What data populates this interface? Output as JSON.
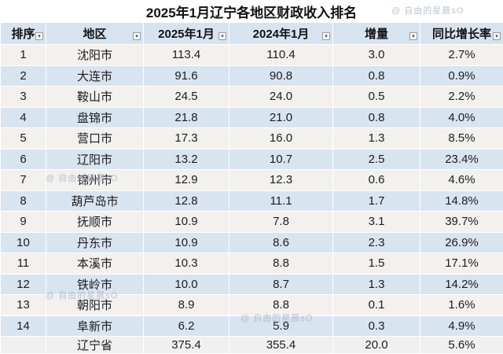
{
  "watermark": {
    "text": "@ 自由的星晨sO"
  },
  "colors": {
    "header_bg": "#d8e3f0",
    "row_odd_bg": "#f2f1ee",
    "row_even_bg": "#d9e4f1",
    "total_row_bg": "#f0f0f0",
    "grid_line": "#ffffff",
    "text": "#1c1c1c",
    "watermark": "#a5b2c1"
  },
  "chart_data": {
    "type": "table",
    "title": "2025年1月辽宁各地区财政收入排名",
    "columns": [
      "排序",
      "地区",
      "2025年1月",
      "2024年1月",
      "增量",
      "同比增长率"
    ],
    "rows": [
      [
        "1",
        "沈阳市",
        "113.4",
        "110.4",
        "3.0",
        "2.7%"
      ],
      [
        "2",
        "大连市",
        "91.6",
        "90.8",
        "0.8",
        "0.9%"
      ],
      [
        "3",
        "鞍山市",
        "24.5",
        "24.0",
        "0.5",
        "2.2%"
      ],
      [
        "4",
        "盘锦市",
        "21.8",
        "21.0",
        "0.8",
        "4.0%"
      ],
      [
        "5",
        "营口市",
        "17.3",
        "16.0",
        "1.3",
        "8.5%"
      ],
      [
        "6",
        "辽阳市",
        "13.2",
        "10.7",
        "2.5",
        "23.4%"
      ],
      [
        "7",
        "锦州市",
        "12.9",
        "12.3",
        "0.6",
        "4.6%"
      ],
      [
        "8",
        "葫芦岛市",
        "12.8",
        "11.1",
        "1.7",
        "14.8%"
      ],
      [
        "9",
        "抚顺市",
        "10.9",
        "7.8",
        "3.1",
        "39.7%"
      ],
      [
        "10",
        "丹东市",
        "10.9",
        "8.6",
        "2.3",
        "26.9%"
      ],
      [
        "11",
        "本溪市",
        "10.3",
        "8.8",
        "1.5",
        "17.1%"
      ],
      [
        "12",
        "铁岭市",
        "10.0",
        "8.7",
        "1.3",
        "14.2%"
      ],
      [
        "13",
        "朝阳市",
        "8.9",
        "8.8",
        "0.1",
        "1.6%"
      ],
      [
        "14",
        "阜新市",
        "6.2",
        "5.9",
        "0.3",
        "4.9%"
      ]
    ],
    "total_row": [
      "",
      "辽宁省",
      "375.4",
      "355.4",
      "20.0",
      "5.6%"
    ],
    "legend": "none",
    "grid": "white cell borders, banded rows"
  }
}
